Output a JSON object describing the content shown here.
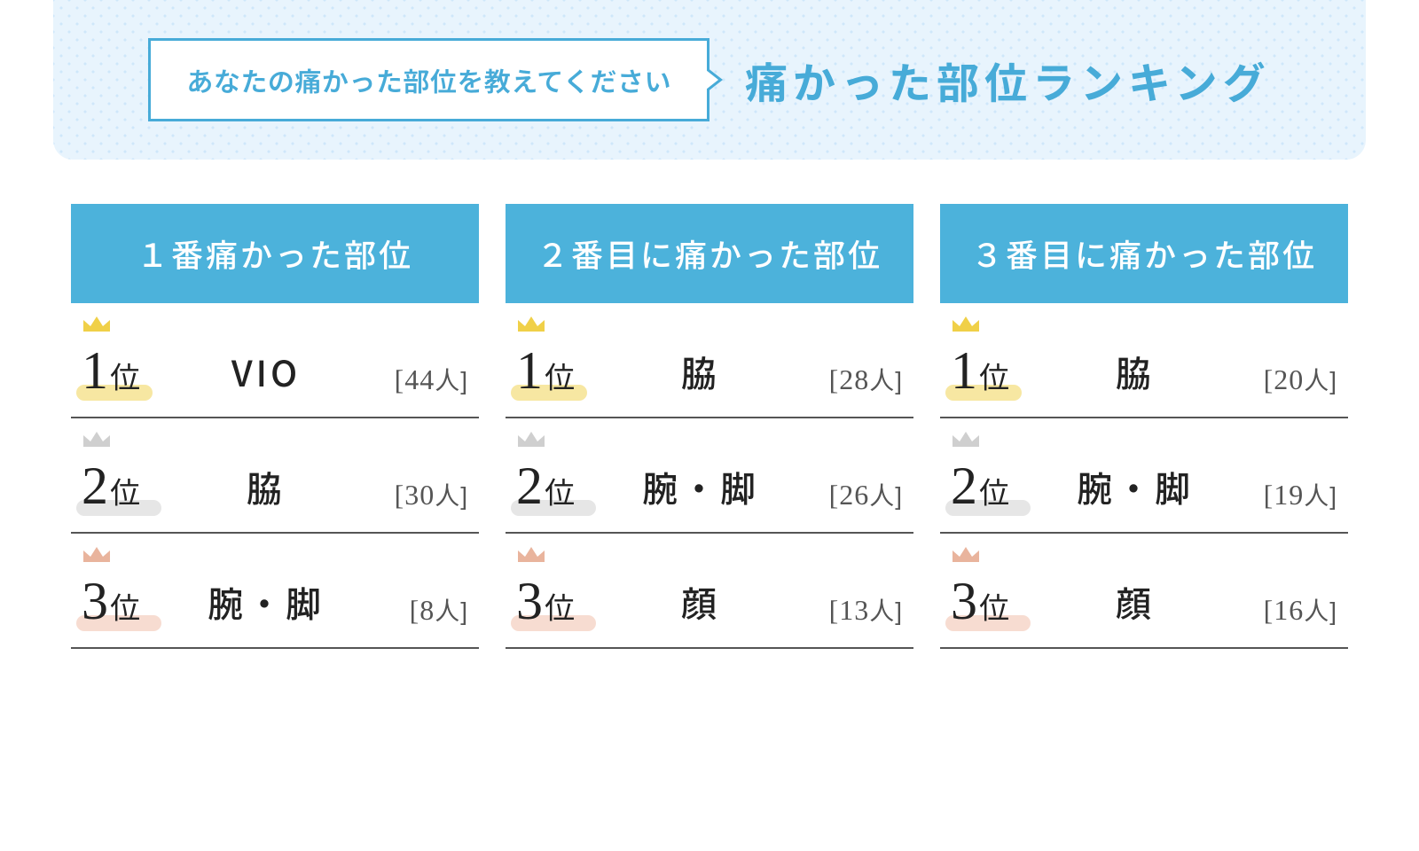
{
  "colors": {
    "accent": "#47abd8",
    "col_header_bg": "#4cb2db",
    "col_header_fg": "#ffffff",
    "page_bg": "#ffffff",
    "band_bg": "#e8f4fd",
    "band_dot": "#cfe7fa",
    "text": "#222222",
    "subtext": "#555555",
    "row_border": "#555555",
    "underline_gold": "#f7e7a2",
    "underline_silver": "#e6e6e6",
    "underline_bronze": "#f7dcd1",
    "crown_gold": "#f0d048",
    "crown_silver": "#cfcfcf",
    "crown_bronze": "#e9b49d"
  },
  "typography": {
    "prompt_fontsize": 30,
    "title_fontsize": 48,
    "col_header_fontsize": 36,
    "rank_num_fontsize": 60,
    "rank_suffix_fontsize": 34,
    "body_part_fontsize": 40,
    "count_fontsize": 32
  },
  "header": {
    "prompt": "あなたの痛かった部位を教えてください",
    "title": "痛かった部位ランキング"
  },
  "rank_labels": {
    "suffix": "位",
    "count_prefix": "[",
    "count_suffix": "人]"
  },
  "columns": [
    {
      "title": "１番痛かった部位",
      "rows": [
        {
          "rank": "1",
          "part": "VIO",
          "count": 44
        },
        {
          "rank": "2",
          "part": "脇",
          "count": 30
        },
        {
          "rank": "3",
          "part": "腕・脚",
          "count": 8
        }
      ]
    },
    {
      "title": "２番目に痛かった部位",
      "rows": [
        {
          "rank": "1",
          "part": "脇",
          "count": 28
        },
        {
          "rank": "2",
          "part": "腕・脚",
          "count": 26
        },
        {
          "rank": "3",
          "part": "顔",
          "count": 13
        }
      ]
    },
    {
      "title": "３番目に痛かった部位",
      "rows": [
        {
          "rank": "1",
          "part": "脇",
          "count": 20
        },
        {
          "rank": "2",
          "part": "腕・脚",
          "count": 19
        },
        {
          "rank": "3",
          "part": "顔",
          "count": 16
        }
      ]
    }
  ],
  "rank_styles": {
    "1": {
      "crown": "crown_gold",
      "underline": "underline_gold",
      "underline_width": 86
    },
    "2": {
      "crown": "crown_silver",
      "underline": "underline_silver",
      "underline_width": 96
    },
    "3": {
      "crown": "crown_bronze",
      "underline": "underline_bronze",
      "underline_width": 96
    }
  }
}
